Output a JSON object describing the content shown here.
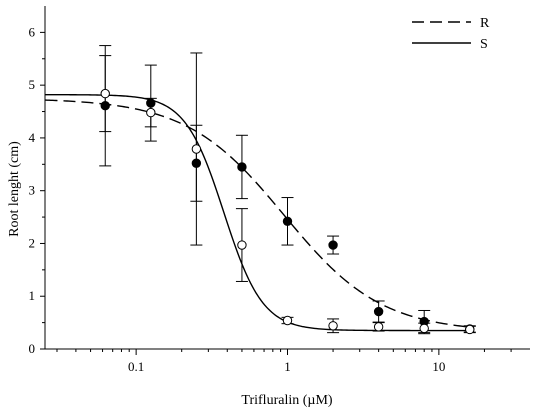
{
  "chart_data": {
    "type": "scatter",
    "xlabel": "Trifluralin (µM)",
    "ylabel": "Root lenght (cm)",
    "x_scale": "log",
    "xlim": [
      0.025,
      40
    ],
    "ylim": [
      0,
      6.5
    ],
    "x_ticks": [
      {
        "value": 0.1,
        "label": "0.1"
      },
      {
        "value": 1,
        "label": "1"
      },
      {
        "value": 10,
        "label": "10"
      }
    ],
    "y_ticks": [
      {
        "value": 0,
        "label": "0"
      },
      {
        "value": 1,
        "label": "1"
      },
      {
        "value": 2,
        "label": "2"
      },
      {
        "value": 3,
        "label": "3"
      },
      {
        "value": 4,
        "label": "4"
      },
      {
        "value": 5,
        "label": "5"
      },
      {
        "value": 6,
        "label": "6"
      }
    ],
    "legend_position": "top-right",
    "series": [
      {
        "name": "R",
        "marker": "filled-circle",
        "line_style": "dashed",
        "points": [
          {
            "x": 0.0625,
            "y": 4.61,
            "err": 1.14
          },
          {
            "x": 0.125,
            "y": 4.66,
            "err": 0.72
          },
          {
            "x": 0.25,
            "y": 3.52,
            "err": 0.72
          },
          {
            "x": 0.5,
            "y": 3.45,
            "err": 0.6
          },
          {
            "x": 1,
            "y": 2.42,
            "err": 0.45
          },
          {
            "x": 2,
            "y": 1.97,
            "err": 0.17
          },
          {
            "x": 4,
            "y": 0.71,
            "err": 0.2
          },
          {
            "x": 8,
            "y": 0.52,
            "err": 0.21
          },
          {
            "x": 16,
            "y": 0.38,
            "err": 0.06
          }
        ],
        "fit": {
          "top": 4.75,
          "bottom": 0.32,
          "ec50": 0.95,
          "hill": 1.35
        }
      },
      {
        "name": "S",
        "marker": "open-circle",
        "line_style": "solid",
        "points": [
          {
            "x": 0.0625,
            "y": 4.84,
            "err": 0.72
          },
          {
            "x": 0.125,
            "y": 4.48,
            "err": 0.27
          },
          {
            "x": 0.25,
            "y": 3.79,
            "err": 1.82
          },
          {
            "x": 0.5,
            "y": 1.97,
            "err": 0.69
          },
          {
            "x": 1,
            "y": 0.54,
            "err": 0.06
          },
          {
            "x": 2,
            "y": 0.44,
            "err": 0.13
          },
          {
            "x": 4,
            "y": 0.42,
            "err": 0.08
          },
          {
            "x": 8,
            "y": 0.39,
            "err": 0.1
          },
          {
            "x": 16,
            "y": 0.37,
            "err": 0.06
          }
        ],
        "fit": {
          "top": 4.82,
          "bottom": 0.35,
          "ec50": 0.38,
          "hill": 3.4
        }
      }
    ]
  }
}
